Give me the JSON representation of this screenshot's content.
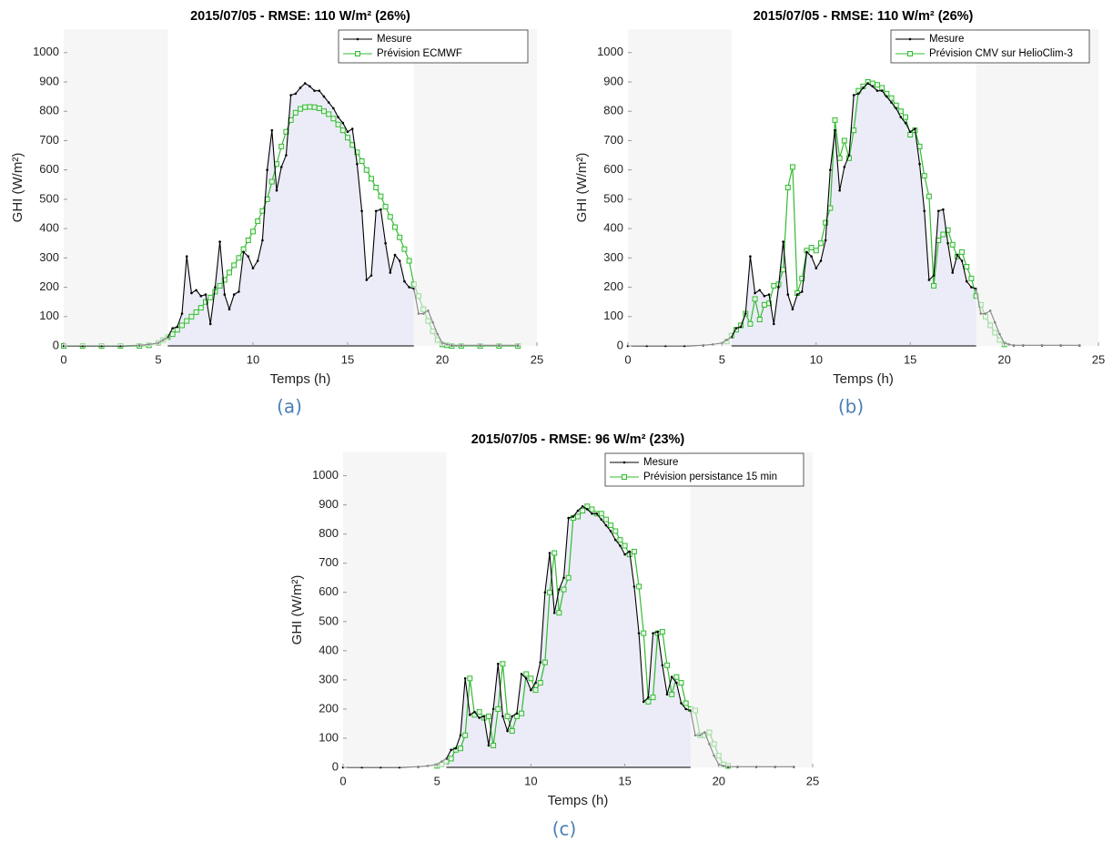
{
  "chart_data": [
    {
      "type": "line",
      "title": "2015/07/05 - RMSE: 110 W/m² (26%)",
      "xlabel": "Temps (h)",
      "ylabel": "GHI (W/m²)",
      "caption": "(a)",
      "x": [
        0,
        1,
        2,
        3,
        4,
        4.5,
        5,
        5.25,
        5.5,
        5.75,
        6,
        6.25,
        6.5,
        6.75,
        7,
        7.25,
        7.5,
        7.75,
        8,
        8.25,
        8.5,
        8.75,
        9,
        9.25,
        9.5,
        9.75,
        10,
        10.25,
        10.5,
        10.75,
        11,
        11.25,
        11.5,
        11.75,
        12,
        12.25,
        12.5,
        12.75,
        13,
        13.25,
        13.5,
        13.75,
        14,
        14.25,
        14.5,
        14.75,
        15,
        15.25,
        15.5,
        15.75,
        16,
        16.25,
        16.5,
        16.75,
        17,
        17.25,
        17.5,
        17.75,
        18,
        18.25,
        18.5,
        18.75,
        19,
        19.25,
        19.5,
        19.75,
        20,
        20.25,
        20.5,
        21,
        22,
        23,
        24
      ],
      "series": [
        {
          "name": "Mesure",
          "color": "#000000",
          "marker": "dot",
          "values": [
            0,
            0,
            0,
            0,
            2,
            5,
            10,
            20,
            30,
            60,
            65,
            110,
            305,
            180,
            190,
            170,
            175,
            75,
            200,
            355,
            175,
            125,
            175,
            185,
            320,
            305,
            265,
            290,
            360,
            600,
            735,
            530,
            610,
            650,
            855,
            860,
            880,
            895,
            885,
            870,
            870,
            850,
            830,
            810,
            780,
            760,
            730,
            740,
            620,
            460,
            225,
            240,
            460,
            465,
            350,
            250,
            310,
            290,
            220,
            200,
            195,
            110,
            110,
            120,
            80,
            40,
            10,
            5,
            2,
            2,
            2,
            2,
            2
          ]
        },
        {
          "name": "Prévision ECMWF",
          "color": "#33bb33",
          "marker": "square",
          "values": [
            0,
            0,
            0,
            0,
            0,
            2,
            10,
            20,
            30,
            40,
            55,
            70,
            85,
            100,
            115,
            130,
            150,
            165,
            185,
            205,
            225,
            250,
            275,
            300,
            330,
            360,
            390,
            425,
            460,
            500,
            560,
            620,
            680,
            730,
            770,
            795,
            808,
            814,
            815,
            814,
            810,
            800,
            790,
            775,
            755,
            735,
            710,
            685,
            660,
            630,
            600,
            570,
            540,
            510,
            475,
            440,
            405,
            370,
            330,
            290,
            210,
            170,
            125,
            85,
            50,
            20,
            5,
            2,
            0,
            0,
            0,
            0,
            0
          ]
        }
      ],
      "xlim": [
        0,
        25
      ],
      "ylim": [
        0,
        1080
      ],
      "xticks": [
        0,
        5,
        10,
        15,
        20,
        25
      ],
      "yticks": [
        0,
        100,
        200,
        300,
        400,
        500,
        600,
        700,
        800,
        900,
        1000
      ],
      "legend": "upper right",
      "shade_ranges": [
        [
          0,
          5.5
        ],
        [
          18.5,
          25
        ]
      ]
    },
    {
      "type": "line",
      "title": "2015/07/05 - RMSE: 110 W/m² (26%)",
      "xlabel": "Temps (h)",
      "ylabel": "GHI (W/m²)",
      "caption": "(b)",
      "x": [
        0,
        1,
        2,
        3,
        4,
        4.5,
        5,
        5.25,
        5.5,
        5.75,
        6,
        6.25,
        6.5,
        6.75,
        7,
        7.25,
        7.5,
        7.75,
        8,
        8.25,
        8.5,
        8.75,
        9,
        9.25,
        9.5,
        9.75,
        10,
        10.25,
        10.5,
        10.75,
        11,
        11.25,
        11.5,
        11.75,
        12,
        12.25,
        12.5,
        12.75,
        13,
        13.25,
        13.5,
        13.75,
        14,
        14.25,
        14.5,
        14.75,
        15,
        15.25,
        15.5,
        15.75,
        16,
        16.25,
        16.5,
        16.75,
        17,
        17.25,
        17.5,
        17.75,
        18,
        18.25,
        18.5,
        18.75,
        19,
        19.25,
        19.5,
        19.75,
        20,
        20.25,
        20.5,
        21,
        22,
        23,
        24
      ],
      "series": [
        {
          "name": "Mesure",
          "color": "#000000",
          "marker": "dot",
          "values": [
            0,
            0,
            0,
            0,
            2,
            5,
            10,
            20,
            30,
            60,
            65,
            110,
            305,
            180,
            190,
            170,
            175,
            75,
            200,
            355,
            175,
            125,
            175,
            185,
            320,
            305,
            265,
            290,
            360,
            600,
            735,
            530,
            610,
            650,
            855,
            860,
            880,
            895,
            885,
            870,
            870,
            850,
            830,
            810,
            780,
            760,
            730,
            740,
            620,
            460,
            225,
            240,
            460,
            465,
            350,
            250,
            310,
            290,
            220,
            200,
            195,
            110,
            110,
            120,
            80,
            40,
            10,
            5,
            2,
            2,
            2,
            2,
            2
          ]
        },
        {
          "name": "Prévision CMV sur HelioClim-3",
          "color": "#33bb33",
          "marker": "square",
          "values": [
            null,
            null,
            null,
            null,
            null,
            null,
            null,
            15,
            35,
            55,
            70,
            110,
            75,
            160,
            90,
            140,
            145,
            205,
            210,
            260,
            540,
            610,
            180,
            230,
            325,
            335,
            325,
            350,
            420,
            470,
            770,
            640,
            700,
            640,
            735,
            870,
            885,
            900,
            895,
            890,
            880,
            860,
            845,
            820,
            800,
            780,
            720,
            735,
            680,
            580,
            510,
            205,
            360,
            380,
            395,
            345,
            305,
            320,
            270,
            230,
            170,
            140,
            100,
            70,
            45,
            20,
            5,
            null,
            null,
            null,
            null,
            null,
            null
          ]
        }
      ],
      "xlim": [
        0,
        25
      ],
      "ylim": [
        0,
        1080
      ],
      "xticks": [
        0,
        5,
        10,
        15,
        20,
        25
      ],
      "yticks": [
        0,
        100,
        200,
        300,
        400,
        500,
        600,
        700,
        800,
        900,
        1000
      ],
      "legend": "upper right",
      "shade_ranges": [
        [
          0,
          5.5
        ],
        [
          18.5,
          25
        ]
      ]
    },
    {
      "type": "line",
      "title": "2015/07/05 - RMSE: 96 W/m² (23%)",
      "xlabel": "Temps (h)",
      "ylabel": "GHI (W/m²)",
      "caption": "(c)",
      "x": [
        0,
        1,
        2,
        3,
        4,
        4.5,
        5,
        5.25,
        5.5,
        5.75,
        6,
        6.25,
        6.5,
        6.75,
        7,
        7.25,
        7.5,
        7.75,
        8,
        8.25,
        8.5,
        8.75,
        9,
        9.25,
        9.5,
        9.75,
        10,
        10.25,
        10.5,
        10.75,
        11,
        11.25,
        11.5,
        11.75,
        12,
        12.25,
        12.5,
        12.75,
        13,
        13.25,
        13.5,
        13.75,
        14,
        14.25,
        14.5,
        14.75,
        15,
        15.25,
        15.5,
        15.75,
        16,
        16.25,
        16.5,
        16.75,
        17,
        17.25,
        17.5,
        17.75,
        18,
        18.25,
        18.5,
        18.75,
        19,
        19.25,
        19.5,
        19.75,
        20,
        20.25,
        20.5,
        21,
        22,
        23,
        24
      ],
      "series": [
        {
          "name": "Mesure",
          "color": "#000000",
          "marker": "dot",
          "values": [
            0,
            0,
            0,
            0,
            2,
            5,
            10,
            20,
            30,
            60,
            65,
            110,
            305,
            180,
            190,
            170,
            175,
            75,
            200,
            355,
            175,
            125,
            175,
            185,
            320,
            305,
            265,
            290,
            360,
            600,
            735,
            530,
            610,
            650,
            855,
            860,
            880,
            895,
            885,
            870,
            870,
            850,
            830,
            810,
            780,
            760,
            730,
            740,
            620,
            460,
            225,
            240,
            460,
            465,
            350,
            250,
            310,
            290,
            220,
            200,
            195,
            110,
            110,
            120,
            80,
            40,
            10,
            5,
            2,
            2,
            2,
            2,
            2
          ]
        },
        {
          "name": "Prévision persistance 15 min",
          "color": "#33bb33",
          "marker": "square",
          "values": [
            null,
            null,
            null,
            null,
            null,
            null,
            5,
            10,
            20,
            30,
            60,
            65,
            110,
            305,
            180,
            190,
            170,
            175,
            75,
            200,
            355,
            175,
            125,
            175,
            185,
            320,
            305,
            265,
            290,
            360,
            600,
            735,
            530,
            610,
            650,
            855,
            860,
            880,
            895,
            885,
            870,
            870,
            850,
            830,
            810,
            780,
            760,
            730,
            740,
            620,
            460,
            225,
            240,
            460,
            465,
            350,
            250,
            310,
            290,
            220,
            200,
            195,
            110,
            110,
            120,
            80,
            40,
            10,
            5,
            null,
            null,
            null,
            null
          ]
        }
      ],
      "xlim": [
        0,
        25
      ],
      "ylim": [
        0,
        1080
      ],
      "xticks": [
        0,
        5,
        10,
        15,
        20,
        25
      ],
      "yticks": [
        0,
        100,
        200,
        300,
        400,
        500,
        600,
        700,
        800,
        900,
        1000
      ],
      "legend": "upper right",
      "shade_ranges": [
        [
          0,
          5.5
        ],
        [
          18.5,
          25
        ]
      ]
    }
  ]
}
